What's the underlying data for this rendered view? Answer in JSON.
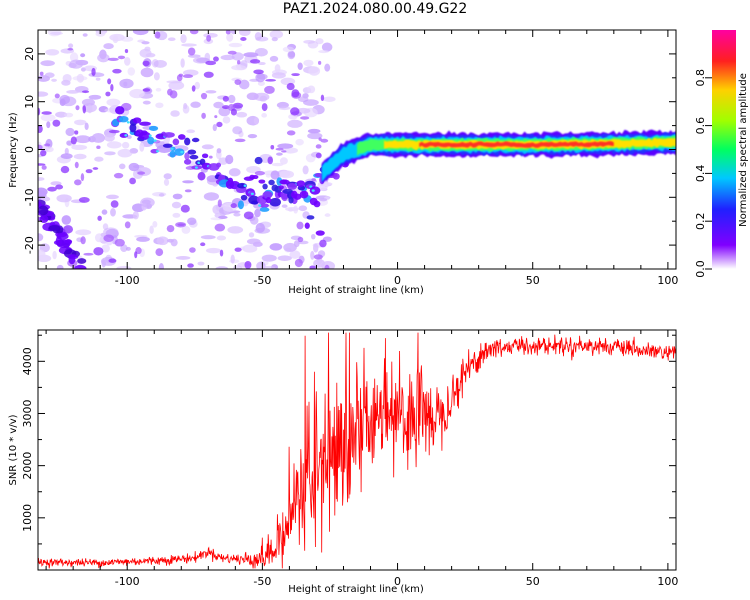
{
  "title": "PAZ1.2024.080.00.49.G22",
  "chart_data": [
    {
      "type": "heatmap",
      "xlabel": "Height of straight line (km)",
      "ylabel": "Frequency (Hz)",
      "xlim": [
        -133,
        103
      ],
      "ylim": [
        -25,
        25
      ],
      "xticks": [
        -100,
        -50,
        0,
        50,
        100
      ],
      "yticks": [
        -20,
        -10,
        0,
        10,
        20
      ],
      "colorbar": {
        "label": "Normalized spectral amplitude",
        "range": [
          0,
          1
        ],
        "ticks": [
          "0.0",
          "0.2",
          "0.4",
          "0.6",
          "0.8"
        ],
        "colormap": "white-purple-blue-cyan-green-yellow-red-magenta"
      },
      "ridge": {
        "description_points": [
          {
            "x": -100,
            "y": 5
          },
          {
            "x": -80,
            "y": 1
          },
          {
            "x": -65,
            "y": -6
          },
          {
            "x": -50,
            "y": -11
          },
          {
            "x": -30,
            "y": -6
          },
          {
            "x": -20,
            "y": -1
          },
          {
            "x": -10,
            "y": 1
          },
          {
            "x": 0,
            "y": 1
          },
          {
            "x": 20,
            "y": 1
          },
          {
            "x": 50,
            "y": 1
          },
          {
            "x": 80,
            "y": 1.2
          },
          {
            "x": 103,
            "y": 1.5
          }
        ]
      }
    },
    {
      "type": "line",
      "xlabel": "Height of straight line (km)",
      "ylabel": "SNR (10 * v/v)",
      "xlim": [
        -133,
        103
      ],
      "ylim": [
        0,
        4600
      ],
      "xticks": [
        -100,
        -50,
        0,
        50,
        100
      ],
      "yticks": [
        1000,
        2000,
        3000,
        4000
      ],
      "series": [
        {
          "color": "#ff0000",
          "profile": [
            {
              "x": -133,
              "y": 150
            },
            {
              "x": -110,
              "y": 140
            },
            {
              "x": -90,
              "y": 180
            },
            {
              "x": -75,
              "y": 230
            },
            {
              "x": -70,
              "y": 350
            },
            {
              "x": -65,
              "y": 230
            },
            {
              "x": -55,
              "y": 200
            },
            {
              "x": -50,
              "y": 250
            },
            {
              "x": -45,
              "y": 400
            },
            {
              "x": -40,
              "y": 900
            },
            {
              "x": -35,
              "y": 1600
            },
            {
              "x": -30,
              "y": 2000
            },
            {
              "x": -25,
              "y": 2200
            },
            {
              "x": -20,
              "y": 2400
            },
            {
              "x": -15,
              "y": 2700
            },
            {
              "x": -10,
              "y": 2800
            },
            {
              "x": -5,
              "y": 2900
            },
            {
              "x": 0,
              "y": 2800
            },
            {
              "x": 5,
              "y": 2900
            },
            {
              "x": 10,
              "y": 2900
            },
            {
              "x": 15,
              "y": 3000
            },
            {
              "x": 20,
              "y": 3300
            },
            {
              "x": 25,
              "y": 3800
            },
            {
              "x": 30,
              "y": 4100
            },
            {
              "x": 35,
              "y": 4250
            },
            {
              "x": 45,
              "y": 4300
            },
            {
              "x": 60,
              "y": 4300
            },
            {
              "x": 75,
              "y": 4300
            },
            {
              "x": 90,
              "y": 4200
            },
            {
              "x": 103,
              "y": 4150
            }
          ],
          "noise_profile": [
            {
              "x": -133,
              "y": 60
            },
            {
              "x": -60,
              "y": 80
            },
            {
              "x": -45,
              "y": 300
            },
            {
              "x": -35,
              "y": 900
            },
            {
              "x": -20,
              "y": 1100
            },
            {
              "x": -10,
              "y": 700
            },
            {
              "x": 10,
              "y": 600
            },
            {
              "x": 25,
              "y": 300
            },
            {
              "x": 40,
              "y": 150
            },
            {
              "x": 103,
              "y": 120
            }
          ]
        }
      ]
    }
  ]
}
